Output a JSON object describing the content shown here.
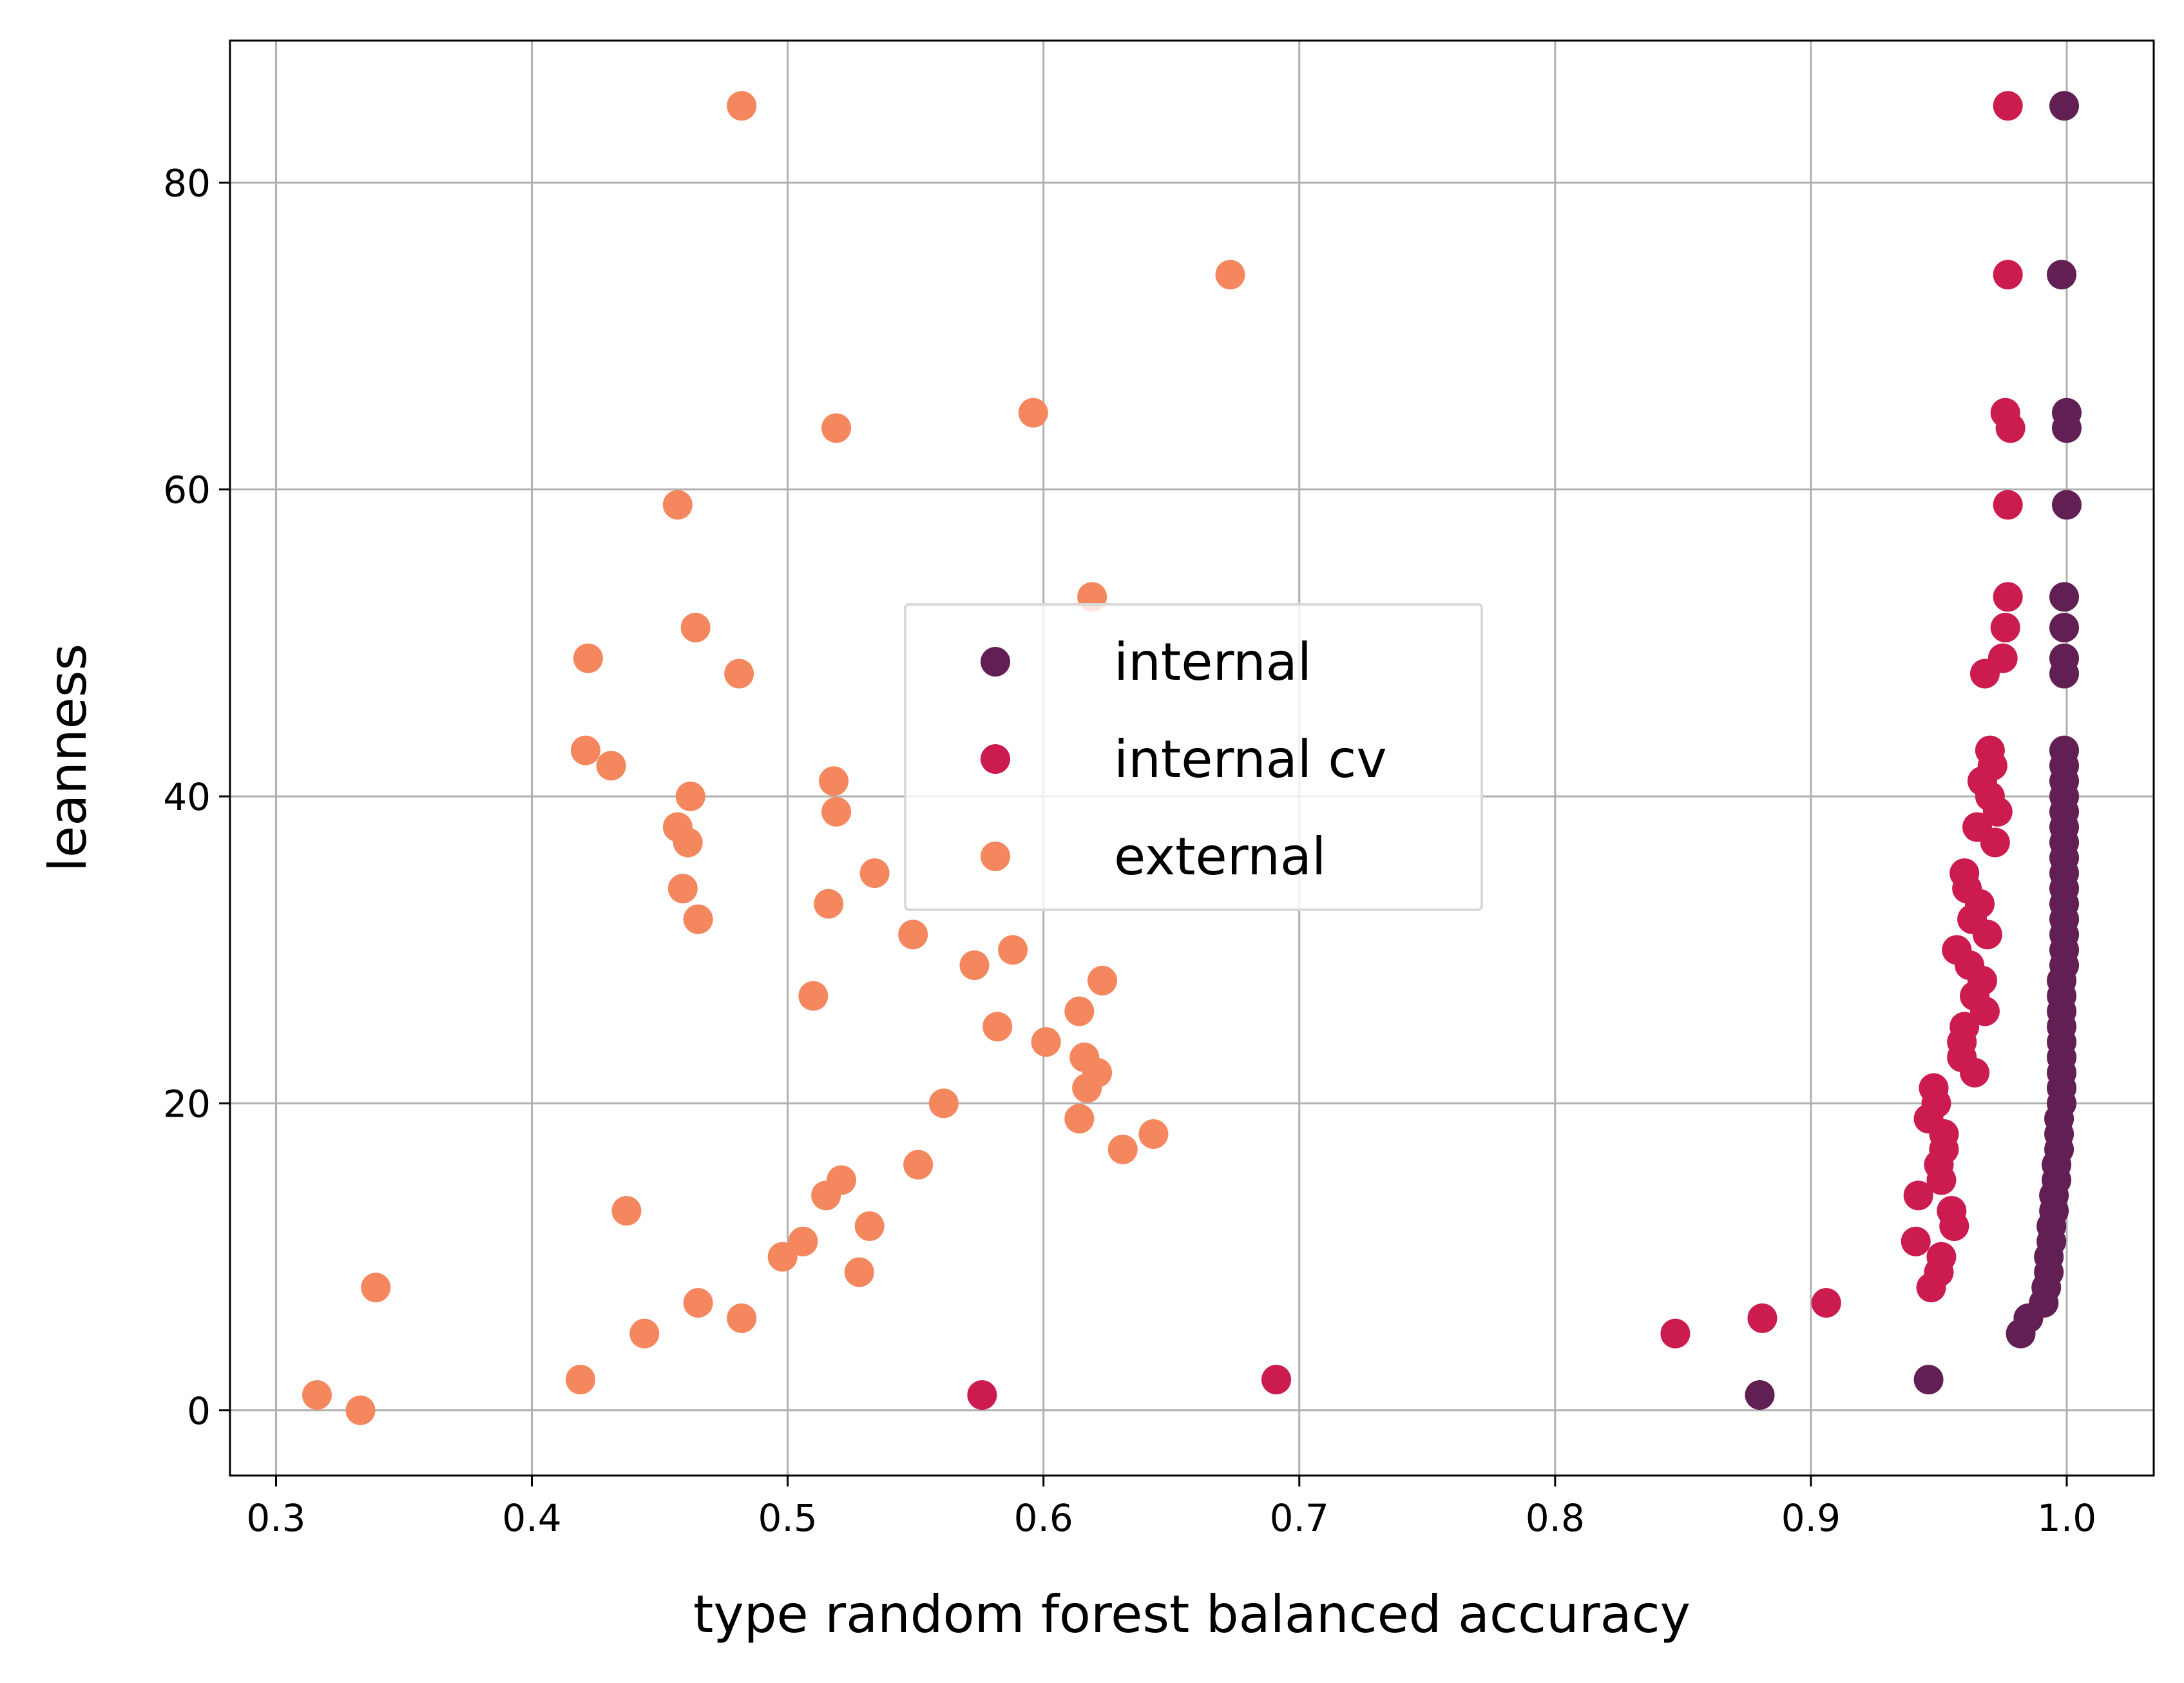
{
  "chart_data": {
    "type": "scatter",
    "title": "",
    "xlabel": "type random forest balanced accuracy",
    "ylabel": "leanness",
    "xlim": [
      0.282,
      1.034
    ],
    "ylim": [
      -4.25,
      89.25
    ],
    "xticks": [
      0.3,
      0.4,
      0.5,
      0.6,
      0.7,
      0.8,
      0.9,
      1.0
    ],
    "xtick_labels": [
      "0.3",
      "0.4",
      "0.5",
      "0.6",
      "0.7",
      "0.8",
      "0.9",
      "1.0"
    ],
    "yticks": [
      0,
      20,
      40,
      60,
      80
    ],
    "ytick_labels": [
      "0",
      "20",
      "40",
      "60",
      "80"
    ],
    "grid": true,
    "legend_position": "center",
    "series": [
      {
        "name": "internal",
        "color": "#611f53",
        "x": [
          0.88,
          0.946,
          0.982,
          0.985,
          0.991,
          0.992,
          0.993,
          0.993,
          0.994,
          0.994,
          0.995,
          0.995,
          0.996,
          0.996,
          0.997,
          0.997,
          0.997,
          0.998,
          0.998,
          0.998,
          0.998,
          0.998,
          0.998,
          0.998,
          0.998,
          0.998,
          0.999,
          0.999,
          0.999,
          0.999,
          0.999,
          0.999,
          0.999,
          0.999,
          0.999,
          0.999,
          0.999,
          0.999,
          0.999,
          0.999,
          0.999,
          0.999,
          0.999,
          0.999,
          0.999,
          1.0,
          1.0,
          1.0
        ],
        "y": [
          1,
          2,
          5,
          6,
          7,
          8,
          9,
          10,
          11,
          12,
          13,
          14,
          15,
          16,
          17,
          18,
          19,
          20,
          21,
          22,
          23,
          24,
          25,
          26,
          27,
          28,
          29,
          30,
          31,
          32,
          33,
          34,
          35,
          36,
          37,
          38,
          39,
          40,
          41,
          42,
          43,
          48,
          49,
          51,
          53,
          59,
          64,
          65
        ]
      },
      {
        "name": "",
        "color": "#611f53",
        "x": [
          0.998,
          0.999
        ],
        "y": [
          74,
          85
        ]
      },
      {
        "name": "internal cv",
        "color": "#cb1b4f",
        "x": [
          0.576,
          0.691,
          0.847,
          0.881,
          0.906,
          0.941,
          0.942,
          0.946,
          0.947,
          0.948,
          0.949,
          0.95,
          0.95,
          0.951,
          0.951,
          0.952,
          0.952,
          0.955,
          0.956,
          0.957,
          0.959,
          0.959,
          0.96,
          0.96,
          0.961,
          0.962,
          0.963,
          0.964,
          0.964,
          0.965,
          0.966,
          0.967,
          0.967,
          0.968,
          0.968,
          0.969,
          0.97,
          0.97,
          0.971,
          0.972,
          0.973,
          0.975,
          0.976,
          0.977,
          0.977,
          0.978
        ],
        "y": [
          1,
          2,
          5,
          6,
          7,
          11,
          14,
          19,
          8,
          21,
          20,
          9,
          16,
          10,
          15,
          17,
          18,
          13,
          12,
          30,
          23,
          24,
          25,
          35,
          34,
          29,
          32,
          22,
          27,
          38,
          33,
          28,
          41,
          26,
          48,
          31,
          40,
          43,
          42,
          37,
          39,
          49,
          51,
          59,
          53,
          64
        ]
      },
      {
        "name": "",
        "color": "#cb1b4f",
        "x": [
          0.976,
          0.977,
          0.977
        ],
        "y": [
          65,
          74,
          85
        ]
      },
      {
        "name": "external",
        "color": "#f5875f",
        "x": [
          0.316,
          0.333,
          0.339,
          0.419,
          0.421,
          0.422,
          0.431,
          0.437,
          0.444,
          0.457,
          0.457,
          0.459,
          0.461,
          0.462,
          0.464,
          0.465,
          0.465,
          0.481,
          0.482,
          0.482,
          0.498,
          0.506,
          0.51,
          0.515,
          0.516,
          0.518,
          0.519,
          0.519,
          0.521,
          0.528,
          0.532,
          0.534,
          0.549,
          0.551,
          0.561,
          0.573,
          0.582,
          0.588,
          0.596,
          0.601,
          0.614,
          0.614,
          0.616,
          0.617,
          0.619,
          0.621,
          0.623,
          0.631,
          0.643,
          0.673
        ],
        "y": [
          1,
          0,
          8,
          2,
          43,
          49,
          42,
          13,
          5,
          38,
          59,
          34,
          37,
          40,
          51,
          7,
          32,
          48,
          6,
          85,
          10,
          11,
          27,
          14,
          33,
          41,
          64,
          39,
          15,
          9,
          12,
          35,
          31,
          16,
          20,
          29,
          25,
          30,
          65,
          24,
          26,
          19,
          23,
          21,
          53,
          22,
          28,
          17,
          18,
          74
        ]
      }
    ]
  }
}
